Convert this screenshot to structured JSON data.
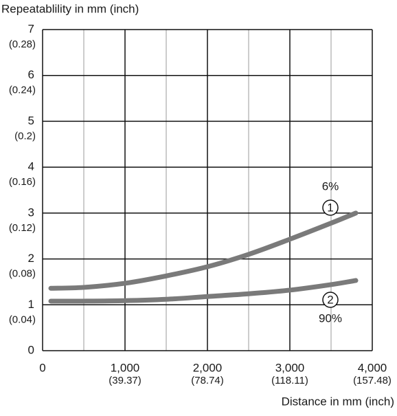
{
  "chart_data": {
    "type": "line",
    "title": "Repeatablility in mm (inch)",
    "x_label": "Distance in mm (inch)",
    "xlim": [
      0,
      4000
    ],
    "xticks": [
      0,
      {
        "value": 1000,
        "label": "1,000"
      },
      {
        "value": 2000,
        "label": "2,000"
      },
      {
        "value": 3000,
        "label": "3,000"
      },
      {
        "value": 4000,
        "label": "4,000"
      }
    ],
    "xtick_sublabels": [
      null,
      "(39.37)",
      "(78.74)",
      "(118.11)",
      "(157.48)"
    ],
    "xminor": [
      500,
      1500,
      2500,
      3500
    ],
    "ylim": [
      0,
      7
    ],
    "yticks": [
      0,
      1,
      2,
      3,
      4,
      5,
      6,
      7
    ],
    "ytick_sublabels": [
      null,
      "(0.04)",
      "(0.08)",
      "(0.12)",
      "(0.16)",
      "(0.2)",
      "(0.24)",
      "(0.28)"
    ],
    "grid": true,
    "series": [
      {
        "label": "1",
        "note": "6%",
        "color": "#7a7a7a",
        "x": [
          100,
          500,
          1000,
          1500,
          2000,
          2500,
          3000,
          3500,
          3800
        ],
        "values": [
          1.36,
          1.38,
          1.47,
          1.63,
          1.83,
          2.1,
          2.43,
          2.78,
          3.0
        ]
      },
      {
        "label": "2",
        "note": "90%",
        "color": "#7a7a7a",
        "x": [
          100,
          500,
          1000,
          1500,
          2000,
          2500,
          3000,
          3500,
          3800
        ],
        "values": [
          1.08,
          1.08,
          1.09,
          1.12,
          1.18,
          1.24,
          1.32,
          1.44,
          1.53
        ]
      }
    ]
  }
}
